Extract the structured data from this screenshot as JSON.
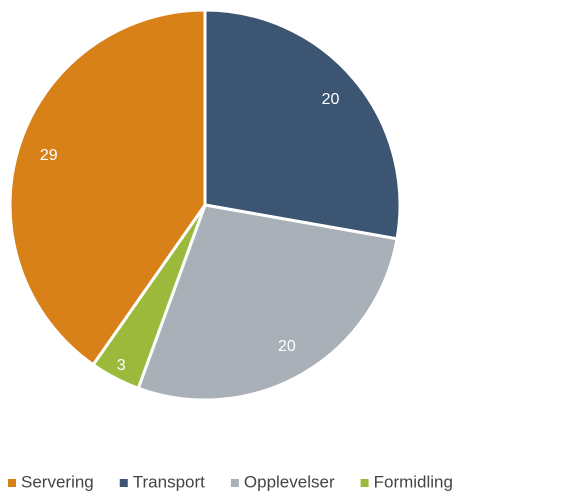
{
  "chart_data": {
    "type": "pie",
    "categories": [
      "Servering",
      "Transport",
      "Opplevelser",
      "Formidling"
    ],
    "values": [
      29,
      20,
      20,
      3
    ],
    "colors": [
      "#d98119",
      "#3b5573",
      "#a9b0b8",
      "#9cb93c"
    ],
    "legend": "bottom"
  }
}
